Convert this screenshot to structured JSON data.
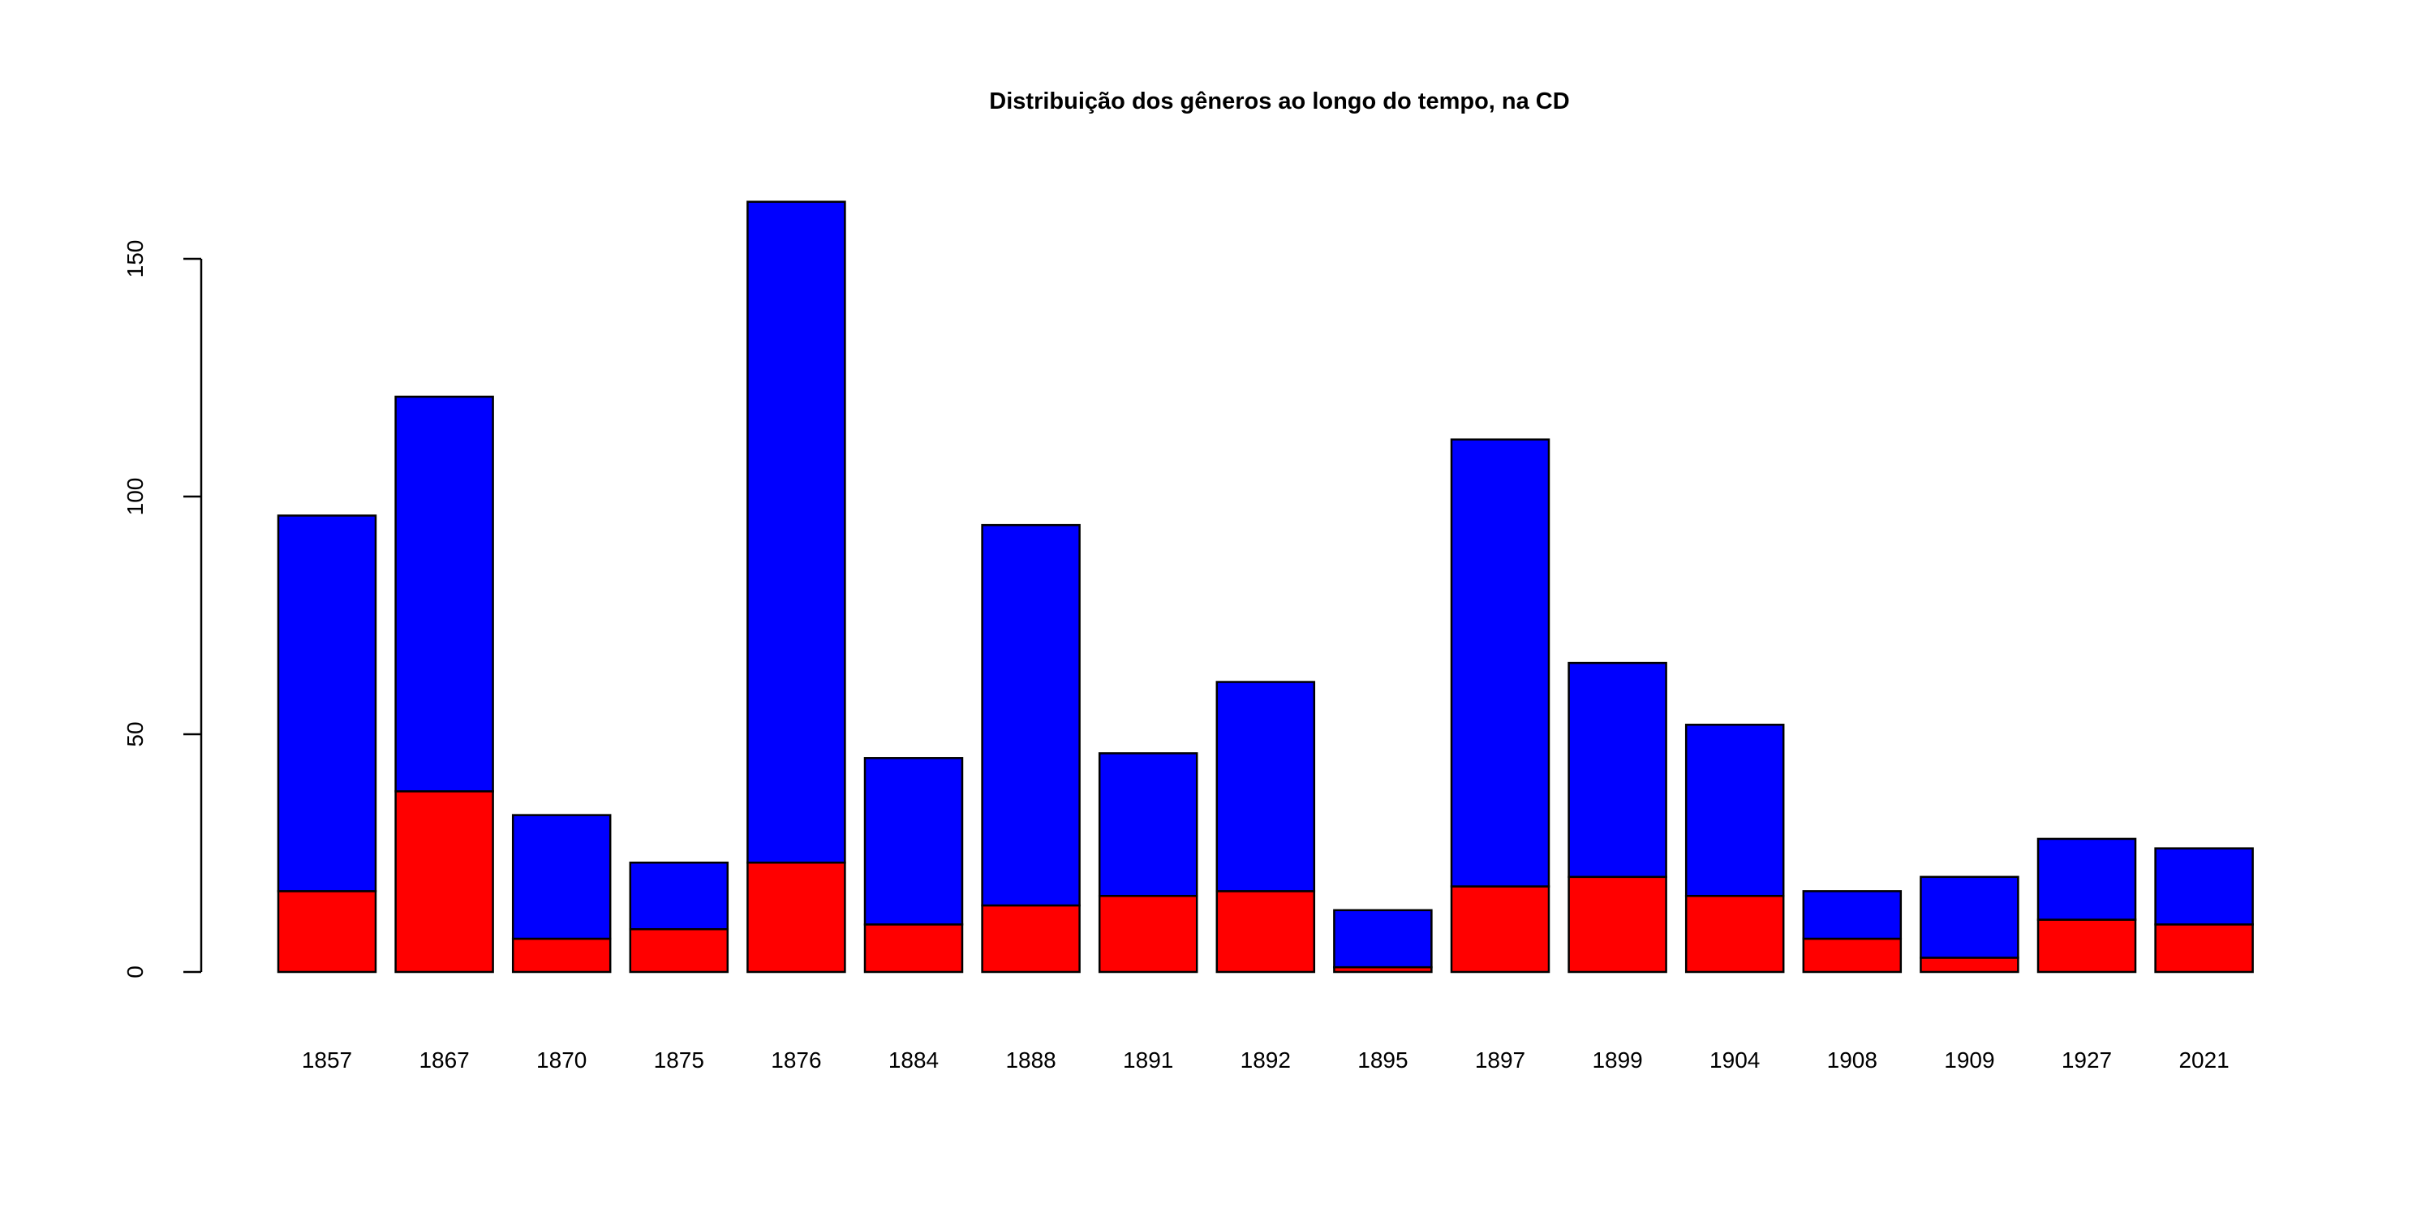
{
  "chart_data": {
    "type": "bar",
    "stacked": true,
    "title": "Distribuição dos gêneros ao longo do tempo, na CD",
    "xlabel": "",
    "ylabel": "",
    "ylim": [
      0,
      165
    ],
    "yticks": [
      "0",
      "50",
      "100",
      "150"
    ],
    "grid": false,
    "legend": "none",
    "categories": [
      "1857",
      "1867",
      "1870",
      "1875",
      "1876",
      "1884",
      "1888",
      "1891",
      "1892",
      "1895",
      "1897",
      "1899",
      "1904",
      "1908",
      "1909",
      "1927",
      "2021"
    ],
    "series": [
      {
        "name": "red",
        "color": "#ff0000",
        "values": [
          17,
          38,
          7,
          9,
          23,
          10,
          14,
          16,
          17,
          1,
          18,
          20,
          16,
          7,
          3,
          11,
          10
        ]
      },
      {
        "name": "blue",
        "color": "#0000ff",
        "values": [
          79,
          83,
          26,
          14,
          139,
          35,
          80,
          30,
          44,
          12,
          94,
          45,
          36,
          10,
          17,
          17,
          16
        ]
      }
    ]
  }
}
